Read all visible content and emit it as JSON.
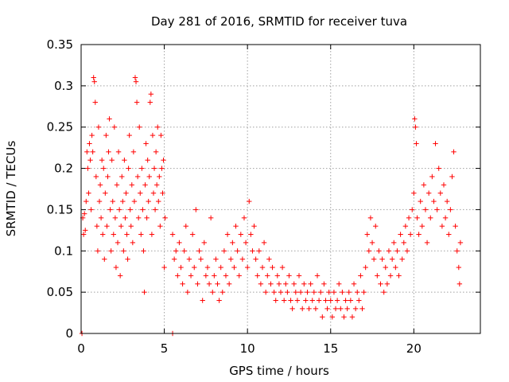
{
  "chart_data": {
    "type": "scatter",
    "title": "Day 281 of 2016, SRMTID for receiver tuva",
    "xlabel": "GPS time / hours",
    "ylabel": "SRMTID / TECUs",
    "xlim": [
      0,
      24
    ],
    "ylim": [
      0,
      0.35
    ],
    "xticks": [
      0,
      5,
      10,
      15,
      20
    ],
    "xtick_labels": [
      "0",
      "5",
      "10",
      "15",
      "20"
    ],
    "yticks": [
      0,
      0.05,
      0.1,
      0.15,
      0.2,
      0.25,
      0.3,
      0.35
    ],
    "ytick_labels": [
      "0",
      "0.05",
      "0.1",
      "0.15",
      "0.2",
      "0.25",
      "0.3",
      "0.35"
    ],
    "grid": true,
    "marker": "+",
    "color": "#ff0000",
    "series": [
      {
        "name": "SRMTID",
        "points": [
          [
            0.05,
            0.0
          ],
          [
            0.1,
            0.14
          ],
          [
            0.15,
            0.12
          ],
          [
            0.2,
            0.145
          ],
          [
            0.25,
            0.125
          ],
          [
            0.3,
            0.16
          ],
          [
            0.35,
            0.22
          ],
          [
            0.4,
            0.2
          ],
          [
            0.45,
            0.17
          ],
          [
            0.5,
            0.23
          ],
          [
            0.55,
            0.21
          ],
          [
            0.6,
            0.15
          ],
          [
            0.65,
            0.24
          ],
          [
            0.7,
            0.22
          ],
          [
            0.75,
            0.31
          ],
          [
            0.8,
            0.305
          ],
          [
            0.85,
            0.28
          ],
          [
            0.9,
            0.19
          ],
          [
            0.95,
            0.13
          ],
          [
            1.0,
            0.1
          ],
          [
            1.05,
            0.25
          ],
          [
            1.1,
            0.16
          ],
          [
            1.15,
            0.18
          ],
          [
            1.2,
            0.14
          ],
          [
            1.25,
            0.21
          ],
          [
            1.3,
            0.12
          ],
          [
            1.35,
            0.2
          ],
          [
            1.4,
            0.09
          ],
          [
            1.45,
            0.17
          ],
          [
            1.5,
            0.24
          ],
          [
            1.55,
            0.13
          ],
          [
            1.6,
            0.19
          ],
          [
            1.65,
            0.22
          ],
          [
            1.7,
            0.26
          ],
          [
            1.75,
            0.15
          ],
          [
            1.8,
            0.1
          ],
          [
            1.85,
            0.21
          ],
          [
            1.9,
            0.16
          ],
          [
            1.95,
            0.12
          ],
          [
            2.0,
            0.25
          ],
          [
            2.05,
            0.14
          ],
          [
            2.1,
            0.08
          ],
          [
            2.15,
            0.18
          ],
          [
            2.2,
            0.11
          ],
          [
            2.25,
            0.22
          ],
          [
            2.3,
            0.15
          ],
          [
            2.35,
            0.07
          ],
          [
            2.4,
            0.13
          ],
          [
            2.45,
            0.19
          ],
          [
            2.5,
            0.16
          ],
          [
            2.55,
            0.1
          ],
          [
            2.6,
            0.21
          ],
          [
            2.65,
            0.14
          ],
          [
            2.7,
            0.17
          ],
          [
            2.75,
            0.12
          ],
          [
            2.8,
            0.09
          ],
          [
            2.85,
            0.2
          ],
          [
            2.9,
            0.24
          ],
          [
            2.95,
            0.15
          ],
          [
            3.0,
            0.13
          ],
          [
            3.05,
            0.18
          ],
          [
            3.1,
            0.11
          ],
          [
            3.15,
            0.22
          ],
          [
            3.2,
            0.16
          ],
          [
            3.25,
            0.31
          ],
          [
            3.3,
            0.305
          ],
          [
            3.35,
            0.28
          ],
          [
            3.4,
            0.19
          ],
          [
            3.45,
            0.14
          ],
          [
            3.5,
            0.25
          ],
          [
            3.55,
            0.17
          ],
          [
            3.6,
            0.12
          ],
          [
            3.65,
            0.2
          ],
          [
            3.7,
            0.15
          ],
          [
            3.75,
            0.1
          ],
          [
            3.8,
            0.05
          ],
          [
            3.85,
            0.18
          ],
          [
            3.9,
            0.23
          ],
          [
            3.95,
            0.14
          ],
          [
            4.0,
            0.21
          ],
          [
            4.05,
            0.16
          ],
          [
            4.1,
            0.19
          ],
          [
            4.15,
            0.28
          ],
          [
            4.2,
            0.29
          ],
          [
            4.25,
            0.12
          ],
          [
            4.3,
            0.24
          ],
          [
            4.35,
            0.17
          ],
          [
            4.4,
            0.2
          ],
          [
            4.45,
            0.15
          ],
          [
            4.5,
            0.22
          ],
          [
            4.55,
            0.18
          ],
          [
            4.6,
            0.25
          ],
          [
            4.65,
            0.16
          ],
          [
            4.7,
            0.19
          ],
          [
            4.75,
            0.13
          ],
          [
            4.8,
            0.24
          ],
          [
            4.85,
            0.2
          ],
          [
            4.9,
            0.17
          ],
          [
            4.95,
            0.21
          ],
          [
            5.0,
            0.08
          ],
          [
            5.05,
            0.14
          ],
          [
            5.5,
            0.0
          ],
          [
            5.5,
            0.12
          ],
          [
            5.6,
            0.09
          ],
          [
            5.7,
            0.1
          ],
          [
            5.8,
            0.07
          ],
          [
            5.9,
            0.11
          ],
          [
            6.0,
            0.08
          ],
          [
            6.1,
            0.06
          ],
          [
            6.2,
            0.1
          ],
          [
            6.3,
            0.13
          ],
          [
            6.4,
            0.05
          ],
          [
            6.5,
            0.09
          ],
          [
            6.6,
            0.07
          ],
          [
            6.7,
            0.12
          ],
          [
            6.8,
            0.08
          ],
          [
            6.9,
            0.15
          ],
          [
            7.0,
            0.06
          ],
          [
            7.1,
            0.1
          ],
          [
            7.2,
            0.09
          ],
          [
            7.3,
            0.04
          ],
          [
            7.4,
            0.11
          ],
          [
            7.5,
            0.07
          ],
          [
            7.6,
            0.08
          ],
          [
            7.7,
            0.06
          ],
          [
            7.8,
            0.14
          ],
          [
            7.9,
            0.05
          ],
          [
            8.0,
            0.07
          ],
          [
            8.1,
            0.09
          ],
          [
            8.2,
            0.06
          ],
          [
            8.3,
            0.04
          ],
          [
            8.4,
            0.08
          ],
          [
            8.5,
            0.05
          ],
          [
            8.6,
            0.1
          ],
          [
            8.7,
            0.07
          ],
          [
            8.8,
            0.12
          ],
          [
            8.9,
            0.06
          ],
          [
            9.0,
            0.09
          ],
          [
            9.1,
            0.11
          ],
          [
            9.2,
            0.08
          ],
          [
            9.3,
            0.13
          ],
          [
            9.4,
            0.1
          ],
          [
            9.5,
            0.07
          ],
          [
            9.6,
            0.12
          ],
          [
            9.7,
            0.09
          ],
          [
            9.8,
            0.14
          ],
          [
            9.9,
            0.11
          ],
          [
            10.0,
            0.08
          ],
          [
            10.1,
            0.16
          ],
          [
            10.2,
            0.12
          ],
          [
            10.3,
            0.1
          ],
          [
            10.4,
            0.13
          ],
          [
            10.5,
            0.09
          ],
          [
            10.6,
            0.07
          ],
          [
            10.7,
            0.1
          ],
          [
            10.8,
            0.06
          ],
          [
            10.9,
            0.08
          ],
          [
            11.0,
            0.11
          ],
          [
            11.1,
            0.05
          ],
          [
            11.2,
            0.07
          ],
          [
            11.3,
            0.09
          ],
          [
            11.4,
            0.06
          ],
          [
            11.5,
            0.08
          ],
          [
            11.6,
            0.05
          ],
          [
            11.7,
            0.04
          ],
          [
            11.8,
            0.07
          ],
          [
            11.9,
            0.06
          ],
          [
            12.0,
            0.05
          ],
          [
            12.1,
            0.08
          ],
          [
            12.2,
            0.04
          ],
          [
            12.3,
            0.06
          ],
          [
            12.4,
            0.05
          ],
          [
            12.5,
            0.07
          ],
          [
            12.6,
            0.04
          ],
          [
            12.7,
            0.03
          ],
          [
            12.8,
            0.06
          ],
          [
            12.9,
            0.05
          ],
          [
            13.0,
            0.04
          ],
          [
            13.1,
            0.07
          ],
          [
            13.2,
            0.05
          ],
          [
            13.3,
            0.03
          ],
          [
            13.4,
            0.06
          ],
          [
            13.5,
            0.04
          ],
          [
            13.6,
            0.05
          ],
          [
            13.7,
            0.03
          ],
          [
            13.8,
            0.06
          ],
          [
            13.9,
            0.04
          ],
          [
            14.0,
            0.05
          ],
          [
            14.1,
            0.03
          ],
          [
            14.2,
            0.07
          ],
          [
            14.3,
            0.04
          ],
          [
            14.4,
            0.05
          ],
          [
            14.5,
            0.02
          ],
          [
            14.6,
            0.06
          ],
          [
            14.7,
            0.04
          ],
          [
            14.8,
            0.03
          ],
          [
            14.9,
            0.05
          ],
          [
            15.0,
            0.04
          ],
          [
            15.1,
            0.02
          ],
          [
            15.2,
            0.05
          ],
          [
            15.3,
            0.03
          ],
          [
            15.4,
            0.04
          ],
          [
            15.5,
            0.06
          ],
          [
            15.6,
            0.03
          ],
          [
            15.7,
            0.05
          ],
          [
            15.8,
            0.02
          ],
          [
            15.9,
            0.04
          ],
          [
            16.0,
            0.03
          ],
          [
            16.1,
            0.05
          ],
          [
            16.2,
            0.04
          ],
          [
            16.3,
            0.02
          ],
          [
            16.4,
            0.06
          ],
          [
            16.5,
            0.03
          ],
          [
            16.6,
            0.05
          ],
          [
            16.7,
            0.04
          ],
          [
            16.8,
            0.07
          ],
          [
            16.9,
            0.03
          ],
          [
            17.0,
            0.05
          ],
          [
            17.1,
            0.08
          ],
          [
            17.2,
            0.12
          ],
          [
            17.3,
            0.1
          ],
          [
            17.4,
            0.14
          ],
          [
            17.5,
            0.11
          ],
          [
            17.6,
            0.09
          ],
          [
            17.7,
            0.13
          ],
          [
            17.8,
            0.07
          ],
          [
            17.9,
            0.1
          ],
          [
            18.0,
            0.06
          ],
          [
            18.1,
            0.09
          ],
          [
            18.2,
            0.05
          ],
          [
            18.3,
            0.08
          ],
          [
            18.4,
            0.06
          ],
          [
            18.5,
            0.1
          ],
          [
            18.6,
            0.07
          ],
          [
            18.7,
            0.09
          ],
          [
            18.8,
            0.11
          ],
          [
            18.9,
            0.08
          ],
          [
            19.0,
            0.1
          ],
          [
            19.1,
            0.07
          ],
          [
            19.2,
            0.12
          ],
          [
            19.3,
            0.09
          ],
          [
            19.4,
            0.11
          ],
          [
            19.5,
            0.13
          ],
          [
            19.6,
            0.1
          ],
          [
            19.7,
            0.14
          ],
          [
            19.8,
            0.12
          ],
          [
            19.9,
            0.15
          ],
          [
            20.0,
            0.17
          ],
          [
            20.05,
            0.26
          ],
          [
            20.1,
            0.25
          ],
          [
            20.15,
            0.23
          ],
          [
            20.2,
            0.14
          ],
          [
            20.3,
            0.12
          ],
          [
            20.4,
            0.16
          ],
          [
            20.5,
            0.13
          ],
          [
            20.6,
            0.18
          ],
          [
            20.7,
            0.15
          ],
          [
            20.8,
            0.11
          ],
          [
            20.9,
            0.17
          ],
          [
            21.0,
            0.14
          ],
          [
            21.1,
            0.19
          ],
          [
            21.2,
            0.16
          ],
          [
            21.3,
            0.23
          ],
          [
            21.4,
            0.15
          ],
          [
            21.5,
            0.2
          ],
          [
            21.6,
            0.17
          ],
          [
            21.7,
            0.13
          ],
          [
            21.8,
            0.18
          ],
          [
            21.9,
            0.14
          ],
          [
            22.0,
            0.16
          ],
          [
            22.1,
            0.12
          ],
          [
            22.2,
            0.15
          ],
          [
            22.3,
            0.19
          ],
          [
            22.4,
            0.22
          ],
          [
            22.5,
            0.13
          ],
          [
            22.6,
            0.1
          ],
          [
            22.7,
            0.08
          ],
          [
            22.75,
            0.06
          ],
          [
            22.8,
            0.11
          ]
        ]
      }
    ]
  }
}
